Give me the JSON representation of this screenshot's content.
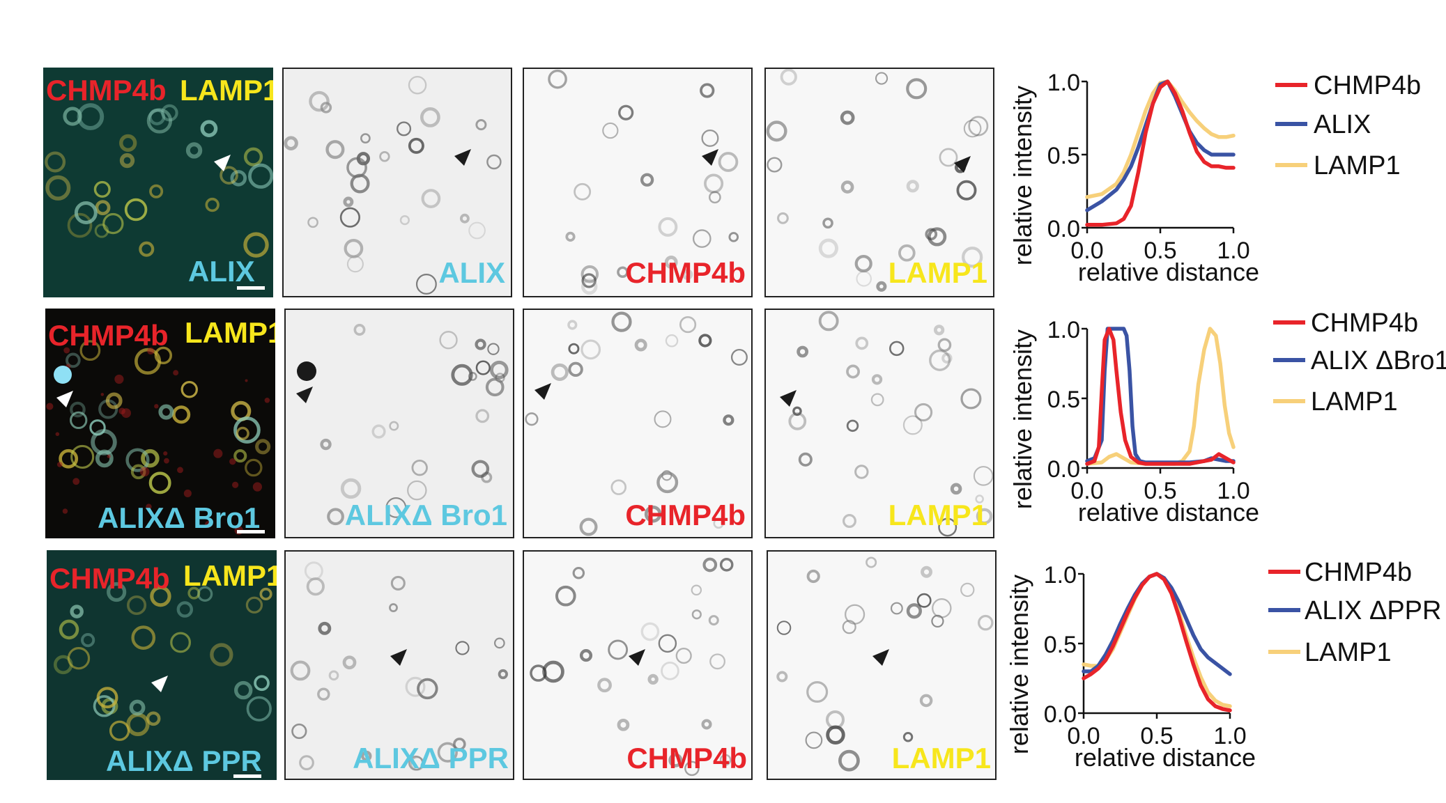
{
  "rows": [
    {
      "merge": {
        "top_left": "CHMP4b",
        "top_right": "LAMP1",
        "bottom": "ALIX"
      },
      "panels": [
        "ALIX",
        "CHMP4b",
        "LAMP1"
      ],
      "bg": "#0e3a33"
    },
    {
      "merge": {
        "top_left": "CHMP4b",
        "top_right": "LAMP1",
        "bottom": "ALIXΔ Bro1"
      },
      "panels": [
        "ALIXΔ Bro1",
        "CHMP4b",
        "LAMP1"
      ],
      "bg": "#0b0a08"
    },
    {
      "merge": {
        "top_left": "CHMP4b",
        "top_right": "LAMP1",
        "bottom": "ALIXΔ PPR"
      },
      "panels": [
        "ALIXΔ PPR",
        "CHMP4b",
        "LAMP1"
      ],
      "bg": "#0f3530"
    }
  ],
  "colors": {
    "red": "#e8242a",
    "yellow": "#f7e61c",
    "cyan": "#5dc8e0",
    "blue": "#3a53a4",
    "tan": "#f7d07a"
  },
  "icons": [
    "arrowhead-icon"
  ],
  "chart_data": [
    {
      "type": "line",
      "xlabel": "relative distance",
      "ylabel": "relative intensity",
      "xlim": [
        0.0,
        1.0
      ],
      "ylim": [
        0.0,
        1.0
      ],
      "xticks": [
        "0.0",
        "0.5",
        "1.0"
      ],
      "yticks": [
        "0.0",
        "0.5",
        "1.0"
      ],
      "series": [
        {
          "name": "CHMP4b",
          "color": "#e8242a",
          "x": [
            0.0,
            0.1,
            0.2,
            0.25,
            0.3,
            0.35,
            0.4,
            0.45,
            0.5,
            0.55,
            0.6,
            0.65,
            0.7,
            0.75,
            0.8,
            0.85,
            0.9,
            0.95,
            1.0
          ],
          "y": [
            0.02,
            0.02,
            0.03,
            0.06,
            0.15,
            0.38,
            0.65,
            0.85,
            0.96,
            1.0,
            0.92,
            0.8,
            0.65,
            0.52,
            0.45,
            0.42,
            0.42,
            0.41,
            0.41
          ]
        },
        {
          "name": "ALIX",
          "color": "#3a53a4",
          "x": [
            0.0,
            0.1,
            0.2,
            0.25,
            0.3,
            0.35,
            0.4,
            0.45,
            0.5,
            0.55,
            0.6,
            0.65,
            0.7,
            0.75,
            0.8,
            0.85,
            0.9,
            0.95,
            1.0
          ],
          "y": [
            0.12,
            0.18,
            0.26,
            0.33,
            0.42,
            0.55,
            0.7,
            0.85,
            0.98,
            1.0,
            0.9,
            0.78,
            0.66,
            0.58,
            0.53,
            0.5,
            0.5,
            0.5,
            0.5
          ]
        },
        {
          "name": "LAMP1",
          "color": "#f7d07a",
          "x": [
            0.0,
            0.1,
            0.2,
            0.25,
            0.3,
            0.35,
            0.4,
            0.45,
            0.5,
            0.55,
            0.6,
            0.65,
            0.7,
            0.75,
            0.8,
            0.85,
            0.9,
            0.95,
            1.0
          ],
          "y": [
            0.21,
            0.23,
            0.3,
            0.38,
            0.5,
            0.65,
            0.8,
            0.92,
            0.99,
            1.0,
            0.94,
            0.86,
            0.79,
            0.73,
            0.68,
            0.64,
            0.62,
            0.62,
            0.63
          ]
        }
      ]
    },
    {
      "type": "line",
      "xlabel": "relative distance",
      "ylabel": "relative intensity",
      "xlim": [
        0.0,
        1.0
      ],
      "ylim": [
        0.0,
        1.0
      ],
      "xticks": [
        "0.0",
        "0.5",
        "1.0"
      ],
      "yticks": [
        "0.0",
        "0.5",
        "1.0"
      ],
      "series": [
        {
          "name": "CHMP4b",
          "color": "#e8242a",
          "x": [
            0.0,
            0.05,
            0.08,
            0.1,
            0.12,
            0.15,
            0.18,
            0.2,
            0.23,
            0.26,
            0.3,
            0.35,
            0.4,
            0.5,
            0.6,
            0.7,
            0.8,
            0.85,
            0.9,
            0.95,
            1.0
          ],
          "y": [
            0.03,
            0.05,
            0.15,
            0.55,
            0.92,
            1.0,
            0.92,
            0.7,
            0.4,
            0.2,
            0.08,
            0.04,
            0.03,
            0.03,
            0.03,
            0.03,
            0.05,
            0.06,
            0.1,
            0.07,
            0.04
          ]
        },
        {
          "name": "ALIX ΔBro1",
          "color": "#3a53a4",
          "x": [
            0.0,
            0.05,
            0.1,
            0.12,
            0.14,
            0.16,
            0.2,
            0.25,
            0.27,
            0.29,
            0.31,
            0.33,
            0.36,
            0.4,
            0.5,
            0.6,
            0.7,
            0.8,
            0.85,
            0.9,
            0.95,
            1.0
          ],
          "y": [
            0.05,
            0.07,
            0.2,
            0.7,
            1.0,
            1.0,
            1.0,
            1.0,
            0.95,
            0.7,
            0.3,
            0.1,
            0.05,
            0.04,
            0.04,
            0.04,
            0.04,
            0.05,
            0.07,
            0.06,
            0.05,
            0.05
          ]
        },
        {
          "name": "LAMP1",
          "color": "#f7d07a",
          "x": [
            0.0,
            0.1,
            0.15,
            0.2,
            0.25,
            0.3,
            0.4,
            0.5,
            0.6,
            0.65,
            0.7,
            0.73,
            0.76,
            0.8,
            0.84,
            0.88,
            0.91,
            0.94,
            0.97,
            1.0
          ],
          "y": [
            0.03,
            0.04,
            0.08,
            0.1,
            0.07,
            0.04,
            0.03,
            0.03,
            0.03,
            0.05,
            0.12,
            0.3,
            0.6,
            0.85,
            1.0,
            0.95,
            0.75,
            0.45,
            0.25,
            0.15
          ]
        }
      ]
    },
    {
      "type": "line",
      "xlabel": "relative distance",
      "ylabel": "relative intensity",
      "xlim": [
        0.0,
        1.0
      ],
      "ylim": [
        0.0,
        1.0
      ],
      "xticks": [
        "0.0",
        "0.5",
        "1.0"
      ],
      "yticks": [
        "0.0",
        "0.5",
        "1.0"
      ],
      "series": [
        {
          "name": "CHMP4b",
          "color": "#e8242a",
          "x": [
            0.0,
            0.05,
            0.1,
            0.15,
            0.2,
            0.25,
            0.3,
            0.35,
            0.4,
            0.45,
            0.5,
            0.55,
            0.6,
            0.65,
            0.7,
            0.75,
            0.8,
            0.85,
            0.9,
            0.95,
            1.0
          ],
          "y": [
            0.25,
            0.28,
            0.32,
            0.38,
            0.48,
            0.6,
            0.72,
            0.83,
            0.92,
            0.98,
            1.0,
            0.96,
            0.86,
            0.7,
            0.52,
            0.35,
            0.2,
            0.1,
            0.05,
            0.03,
            0.02
          ]
        },
        {
          "name": "ALIX ΔPPR",
          "color": "#3a53a4",
          "x": [
            0.0,
            0.05,
            0.1,
            0.15,
            0.2,
            0.25,
            0.3,
            0.35,
            0.4,
            0.45,
            0.5,
            0.55,
            0.6,
            0.65,
            0.7,
            0.75,
            0.8,
            0.85,
            0.9,
            0.95,
            1.0
          ],
          "y": [
            0.3,
            0.3,
            0.34,
            0.42,
            0.52,
            0.64,
            0.75,
            0.85,
            0.93,
            0.98,
            1.0,
            0.97,
            0.9,
            0.8,
            0.68,
            0.56,
            0.46,
            0.4,
            0.36,
            0.32,
            0.28
          ]
        },
        {
          "name": "LAMP1",
          "color": "#f7d07a",
          "x": [
            0.0,
            0.05,
            0.1,
            0.15,
            0.2,
            0.25,
            0.3,
            0.35,
            0.4,
            0.45,
            0.5,
            0.55,
            0.6,
            0.65,
            0.7,
            0.75,
            0.8,
            0.85,
            0.9,
            0.95,
            1.0
          ],
          "y": [
            0.35,
            0.34,
            0.34,
            0.38,
            0.46,
            0.58,
            0.7,
            0.82,
            0.92,
            0.98,
            1.0,
            0.97,
            0.88,
            0.73,
            0.56,
            0.4,
            0.26,
            0.15,
            0.09,
            0.06,
            0.05
          ]
        }
      ]
    }
  ]
}
